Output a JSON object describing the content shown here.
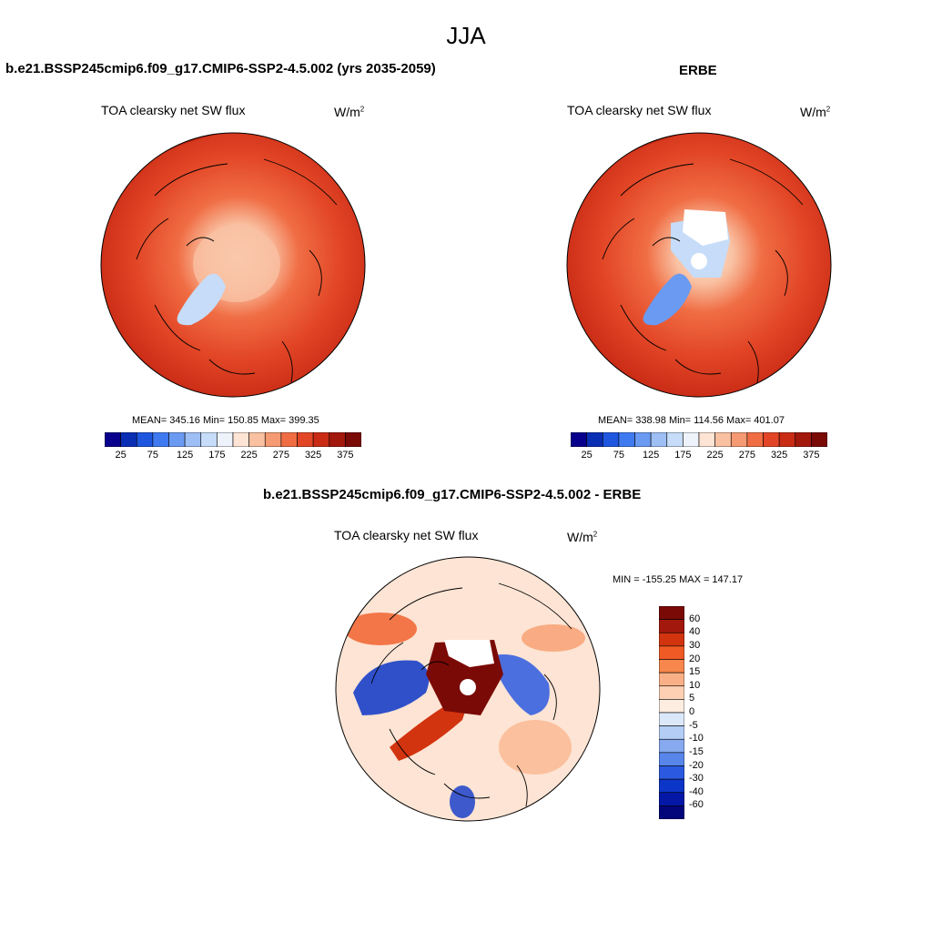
{
  "figure": {
    "main_title": "JJA",
    "panels": [
      {
        "title": "b.e21.BSSP245cmip6.f09_g17.CMIP6-SSP2-4.5.002 (yrs 2035-2059)",
        "variable": "TOA clearsky net SW flux",
        "units_base": "W/m",
        "units_exp": "2",
        "stats": "MEAN= 345.16  Min= 150.85  Max= 399.35",
        "colorbar_ticks": [
          "25",
          "75",
          "125",
          "175",
          "225",
          "275",
          "325",
          "375"
        ]
      },
      {
        "title": "ERBE",
        "variable": "TOA clearsky net SW flux",
        "units_base": "W/m",
        "units_exp": "2",
        "stats": "MEAN= 338.98  Min= 114.56  Max= 401.07",
        "colorbar_ticks": [
          "25",
          "75",
          "125",
          "175",
          "225",
          "275",
          "325",
          "375"
        ]
      },
      {
        "title": "b.e21.BSSP245cmip6.f09_g17.CMIP6-SSP2-4.5.002 - ERBE",
        "variable": "TOA clearsky net SW flux",
        "units_base": "W/m",
        "units_exp": "2",
        "stats": "MIN = -155.25 MAX = 147.17",
        "colorbar_ticks": [
          "60",
          "40",
          "30",
          "20",
          "15",
          "10",
          "5",
          "0",
          "-5",
          "-10",
          "-15",
          "-20",
          "-30",
          "-40",
          "-60"
        ]
      }
    ]
  },
  "colors": {
    "abs_scale": [
      "#08008c",
      "#0a2fb4",
      "#1e56e0",
      "#3f7af0",
      "#6a9af2",
      "#9ebff5",
      "#c6dcf8",
      "#eef3fb",
      "#fde4d4",
      "#f9c1a2",
      "#f59a72",
      "#f06d44",
      "#e24626",
      "#c92b15",
      "#a3180c",
      "#7a0a06"
    ],
    "diff_scale": [
      "#7a0a06",
      "#a3180c",
      "#d2340f",
      "#f05a24",
      "#f7874c",
      "#fab086",
      "#fdd0b4",
      "#fdece0",
      "#dbe8fa",
      "#b3cdf5",
      "#86a9f0",
      "#5785ea",
      "#2b5ae0",
      "#0c36c8",
      "#0417a6",
      "#02067a"
    ]
  }
}
